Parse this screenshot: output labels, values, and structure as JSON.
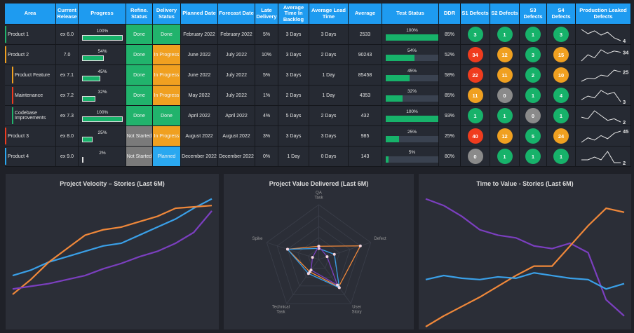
{
  "table": {
    "columns": [
      "Area",
      "Current Release",
      "Progress",
      "Refine. Status",
      "Delivery Status",
      "Planned Date",
      "Forecast Date",
      "Late Delivery",
      "Average Time In Backlog",
      "Average Lead Time",
      "Average",
      "Test Status",
      "DDR",
      "S1 Defects",
      "S2 Defects",
      "S3 Defects",
      "S4 Defects",
      "Production Leaked Defects"
    ],
    "status_colors": {
      "Done": "#21b36c",
      "In Progress": "#f0a020",
      "Planned": "#2aa8f0",
      "Not Started": "#7a7a7a"
    },
    "progress_color": "#17b26a",
    "rows": [
      {
        "area": "Product 1",
        "level": 1,
        "accent": "#21b36c",
        "release": "ex 6.0",
        "progress": {
          "value": 100,
          "label": "100%"
        },
        "refine": "Done",
        "delivery": "Done",
        "planned": "February 2022",
        "forecast": "February 2022",
        "late": "5%",
        "backlog": "3 Days",
        "lead": "3 Days",
        "average": "2533",
        "test": {
          "value": 100,
          "label": "100%"
        },
        "ddr": "85%",
        "defects": [
          3,
          1,
          1,
          3
        ],
        "defect_colors": [
          "#17b26a",
          "#17b26a",
          "#17b26a",
          "#17b26a"
        ],
        "sparkline": [
          12,
          9,
          11,
          8,
          10,
          6,
          4
        ]
      },
      {
        "area": "Product 2",
        "level": 1,
        "accent": "#f0a020",
        "release": "7.0",
        "progress": {
          "value": 54,
          "label": "54%"
        },
        "refine": "Done",
        "delivery": "In Progress",
        "planned": "June 2022",
        "forecast": "July 2022",
        "late": "10%",
        "backlog": "3 Days",
        "lead": "2 Days",
        "average": "90243",
        "test": {
          "value": 54,
          "label": "54%"
        },
        "ddr": "52%",
        "defects": [
          34,
          12,
          3,
          15
        ],
        "defect_colors": [
          "#f03c1e",
          "#f0a020",
          "#17b26a",
          "#f0a020"
        ],
        "sparkline": [
          20,
          30,
          25,
          38,
          32,
          36,
          34
        ]
      },
      {
        "area": "Product Feature",
        "level": 2,
        "accent": "#f0a020",
        "release": "ex 7.1",
        "progress": {
          "value": 45,
          "label": "45%"
        },
        "refine": "Done",
        "delivery": "In Progress",
        "planned": "June 2022",
        "forecast": "July 2022",
        "late": "5%",
        "backlog": "3 Days",
        "lead": "1 Day",
        "average": "85458",
        "test": {
          "value": 45,
          "label": "45%"
        },
        "ddr": "58%",
        "defects": [
          22,
          11,
          2,
          10
        ],
        "defect_colors": [
          "#f03c1e",
          "#f0a020",
          "#17b26a",
          "#f0a020"
        ],
        "sparkline": [
          10,
          15,
          14,
          20,
          18,
          28,
          25
        ]
      },
      {
        "area": "Maintenance",
        "level": 2,
        "accent": "#f03c1e",
        "release": "ex 7.2",
        "progress": {
          "value": 32,
          "label": "32%"
        },
        "refine": "Done",
        "delivery": "In Progress",
        "planned": "May 2022",
        "forecast": "July 2022",
        "late": "1%",
        "backlog": "2 Days",
        "lead": "1 Day",
        "average": "4353",
        "test": {
          "value": 32,
          "label": "32%"
        },
        "ddr": "85%",
        "defects": [
          11,
          0,
          1,
          4
        ],
        "defect_colors": [
          "#f0a020",
          "#8a8a8a",
          "#17b26a",
          "#17b26a"
        ],
        "sparkline": [
          4,
          6,
          5,
          9,
          7,
          8,
          3
        ]
      },
      {
        "area": "Codebase Improvements",
        "level": 2,
        "accent": "#21b36c",
        "release": "ex 7.3",
        "progress": {
          "value": 100,
          "label": "100%"
        },
        "refine": "Done",
        "delivery": "Done",
        "planned": "April 2022",
        "forecast": "April 2022",
        "late": "4%",
        "backlog": "5 Days",
        "lead": "2 Days",
        "average": "432",
        "test": {
          "value": 100,
          "label": "100%"
        },
        "ddr": "93%",
        "defects": [
          1,
          1,
          0,
          1
        ],
        "defect_colors": [
          "#17b26a",
          "#17b26a",
          "#8a8a8a",
          "#17b26a"
        ],
        "sparkline": [
          5,
          4,
          9,
          6,
          3,
          4,
          2
        ]
      },
      {
        "area": "Product 3",
        "level": 1,
        "accent": "#f03c1e",
        "release": "ex 8.0",
        "progress": {
          "value": 25,
          "label": "25%"
        },
        "refine": "Not Started",
        "delivery": "In Progress",
        "planned": "August 2022",
        "forecast": "August 2022",
        "late": "3%",
        "backlog": "3 Days",
        "lead": "3 Days",
        "average": "985",
        "test": {
          "value": 25,
          "label": "25%"
        },
        "ddr": "25%",
        "defects": [
          40,
          12,
          5,
          24
        ],
        "defect_colors": [
          "#f03c1e",
          "#f0a020",
          "#17b26a",
          "#f0a020"
        ],
        "sparkline": [
          20,
          30,
          25,
          35,
          28,
          40,
          45
        ]
      },
      {
        "area": "Product 4",
        "level": 1,
        "accent": "#2aa8f0",
        "release": "ex 9.0",
        "progress": {
          "value": 2,
          "label": "2%"
        },
        "refine": "Not Started",
        "delivery": "Planned",
        "planned": "December 2022",
        "forecast": "December 2022",
        "late": "0%",
        "backlog": "1 Day",
        "lead": "0 Days",
        "average": "143",
        "test": {
          "value": 5,
          "label": "5%"
        },
        "ddr": "80%",
        "defects": [
          0,
          1,
          1,
          1
        ],
        "defect_colors": [
          "#8a8a8a",
          "#17b26a",
          "#17b26a",
          "#17b26a"
        ],
        "sparkline": [
          3,
          3,
          4,
          3,
          6,
          2,
          2
        ]
      }
    ]
  },
  "chart_data": [
    {
      "type": "line",
      "title": "Project Velocity – Stories (Last 6M)",
      "categories": [
        null,
        null,
        null,
        null,
        null,
        null,
        null,
        null,
        null,
        null,
        null,
        null
      ],
      "ylim": [
        0,
        100
      ],
      "series": [
        {
          "color": "#3aa0e8",
          "values": [
            38,
            42,
            48,
            52,
            56,
            60,
            62,
            68,
            74,
            80,
            88,
            95
          ]
        },
        {
          "color": "#f0883a",
          "values": [
            24,
            35,
            48,
            58,
            68,
            72,
            74,
            78,
            82,
            88,
            89,
            90
          ]
        },
        {
          "color": "#7b3fbf",
          "values": [
            28,
            30,
            32,
            35,
            38,
            43,
            47,
            52,
            56,
            62,
            70,
            86
          ]
        }
      ]
    },
    {
      "type": "radar",
      "title": "Project Value Delivered (Last 6M)",
      "categories": [
        "QA Task",
        "Defect",
        "User Story",
        "Technical Task",
        "Spike"
      ],
      "rlim": [
        0,
        5
      ],
      "rticks": [
        1,
        2,
        3,
        4,
        5
      ],
      "grid": true,
      "marker_color": "#f3d6e0",
      "series": [
        {
          "color": "#f0883a",
          "values": [
            1.2,
            4,
            3.1,
            1.4,
            3
          ]
        },
        {
          "color": "#3aa0e8",
          "values": [
            1,
            1.5,
            3.2,
            1.6,
            3
          ]
        },
        {
          "color": "#7b3fbf",
          "values": [
            1.2,
            0.8,
            2.9,
            1.2,
            0.6
          ]
        }
      ]
    },
    {
      "type": "line",
      "title": "Time to Value - Stories (Last 6M)",
      "categories": [
        null,
        null,
        null,
        null,
        null,
        null,
        null,
        null,
        null,
        null,
        null,
        null
      ],
      "ylim": [
        0,
        100
      ],
      "series": [
        {
          "color": "#7b3fbf",
          "values": [
            95,
            90,
            82,
            72,
            68,
            66,
            60,
            58,
            62,
            55,
            20,
            8
          ]
        },
        {
          "color": "#f0883a",
          "values": [
            0,
            8,
            15,
            22,
            30,
            38,
            45,
            45,
            60,
            75,
            88,
            85
          ]
        },
        {
          "color": "#3aa0e8",
          "values": [
            35,
            38,
            36,
            35,
            37,
            36,
            40,
            38,
            36,
            35,
            28,
            32
          ]
        }
      ]
    }
  ]
}
